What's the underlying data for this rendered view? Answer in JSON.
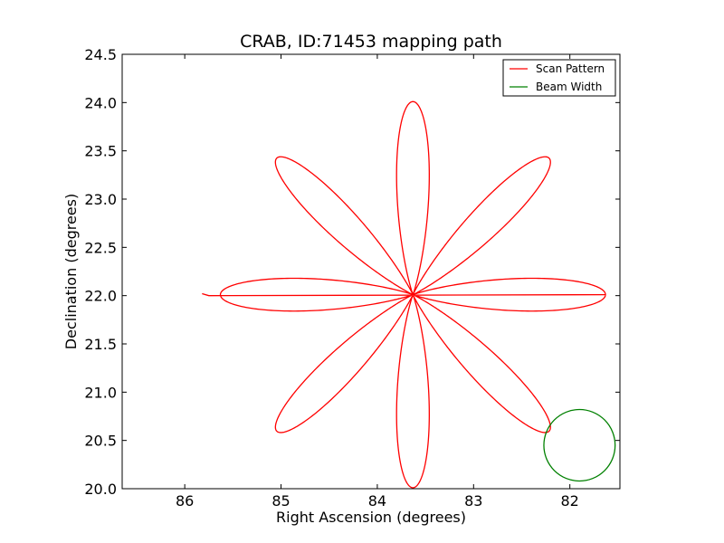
{
  "chart_data": {
    "type": "line",
    "title": "CRAB, ID:71453 mapping path",
    "xlabel": "Right Ascension (degrees)",
    "ylabel": "Declination (degrees)",
    "xlim": [
      86.65,
      81.48
    ],
    "ylim": [
      20.0,
      24.5
    ],
    "x_ticks": [
      86,
      85,
      84,
      83,
      82
    ],
    "x_tick_labels": [
      "86",
      "85",
      "84",
      "83",
      "82"
    ],
    "y_ticks": [
      20.0,
      20.5,
      21.0,
      21.5,
      22.0,
      22.5,
      23.0,
      23.5,
      24.0,
      24.5
    ],
    "y_tick_labels": [
      "20.0",
      "20.5",
      "21.0",
      "21.5",
      "22.0",
      "22.5",
      "23.0",
      "23.5",
      "24.0",
      "24.5"
    ],
    "grid": false,
    "legend_position": "top-right",
    "series": [
      {
        "name": "Scan Pattern",
        "color": "#ff0000",
        "kind": "rose",
        "center": [
          83.63,
          22.01
        ],
        "petals": 8,
        "radius": 2.0,
        "petal_exponent": 3,
        "start_tail": [
          [
            85.82,
            22.02
          ],
          [
            85.75,
            22.0
          ]
        ]
      },
      {
        "name": "Beam Width",
        "color": "#008000",
        "kind": "circle",
        "center": [
          81.9,
          20.45
        ],
        "radius": 0.37
      }
    ],
    "legend": [
      {
        "label": "Scan Pattern",
        "color": "#ff0000"
      },
      {
        "label": "Beam Width",
        "color": "#008000"
      }
    ]
  }
}
